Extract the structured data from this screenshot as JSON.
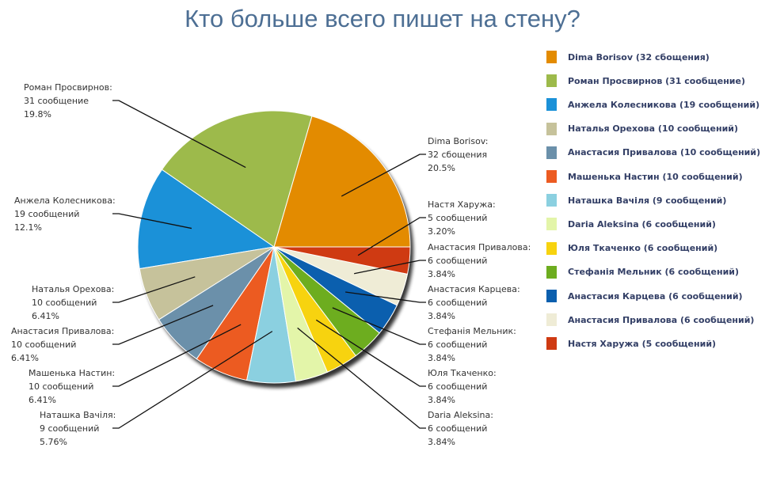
{
  "chart_data": {
    "type": "pie",
    "title": "Кто больше всего пишет на стену?",
    "slices": [
      {
        "name": "Dima Borisov",
        "value": 32,
        "percent": "20.5%",
        "count_text": "32 сбощения",
        "legend": "Dima Borisov (32 сбощения)",
        "callout_name": "Dima Borisov:",
        "color": "#e38b00"
      },
      {
        "name": "Роман Просвирнов",
        "value": 31,
        "percent": "19.8%",
        "count_text": "31 сообщение",
        "legend": "Роман Просвирнов (31 сообщение)",
        "callout_name": "Роман Просвирнов:",
        "color": "#9dba4b"
      },
      {
        "name": "Анжела Колесникова",
        "value": 19,
        "percent": "12.1%",
        "count_text": "19 сообщений",
        "legend": "Анжела Колесникова (19 сообщений)",
        "callout_name": "Анжела Колесникова:",
        "color": "#1b91d8"
      },
      {
        "name": "Наталья Орехова",
        "value": 10,
        "percent": "6.41%",
        "count_text": "10 сообщений",
        "legend": "Наталья Орехова (10 сообщений)",
        "callout_name": "Наталья Орехова:",
        "color": "#c6c29b"
      },
      {
        "name": "Анастасия Привалова",
        "value": 10,
        "percent": "6.41%",
        "count_text": "10 сообщений",
        "legend": "Анастасия Привалова (10 сообщений)",
        "callout_name": "Анастасия Привалова:",
        "color": "#6b90aa"
      },
      {
        "name": "Машенька Настин",
        "value": 10,
        "percent": "6.41%",
        "count_text": "10 сообщений",
        "legend": "Машенька Настин (10 сообщений)",
        "callout_name": "Машенька Настин:",
        "color": "#ec5b21"
      },
      {
        "name": "Наташка Вачіля",
        "value": 9,
        "percent": "5.76%",
        "count_text": "9 сообщений",
        "legend": "Наташка Вачіля (9 сообщений)",
        "callout_name": "Наташка Вачіля:",
        "color": "#8bd0e0"
      },
      {
        "name": "Daria Aleksina",
        "value": 6,
        "percent": "3.84%",
        "count_text": "6 сообщений",
        "legend": "Daria Aleksina (6 сообщений)",
        "callout_name": "Daria Aleksina:",
        "color": "#e3f5a9"
      },
      {
        "name": "Юля Ткаченко",
        "value": 6,
        "percent": "3.84%",
        "count_text": "6 сообщений",
        "legend": "Юля Ткаченко (6 сообщений)",
        "callout_name": "Юля Ткаченко:",
        "color": "#f7d30f"
      },
      {
        "name": "Стефанія Мельник",
        "value": 6,
        "percent": "3.84%",
        "count_text": "6 сообщений",
        "legend": "Стефанія Мельник (6 сообщений)",
        "callout_name": "Стефанія Мельник:",
        "color": "#6dad1f"
      },
      {
        "name": "Анастасия Карцева",
        "value": 6,
        "percent": "3.84%",
        "count_text": "6 сообщений",
        "legend": "Анастасия Карцева (6 сообщений)",
        "callout_name": "Анастасия Карцева:",
        "color": "#0b5fae"
      },
      {
        "name": "Анастасия Привалова",
        "value": 6,
        "percent": "3.84%",
        "count_text": "6 сообщений",
        "legend": "Анастасия Привалова (6 сообщений)",
        "callout_name": "Анастасия Привалова:",
        "color": "#efecd6"
      },
      {
        "name": "Настя Харужа",
        "value": 5,
        "percent": "3.20%",
        "count_text": "5 сообщений",
        "legend": "Настя Харужа (5 сообщений)",
        "callout_name": "Настя Харужа:",
        "color": "#cf3a12"
      }
    ],
    "legend_position": "right"
  }
}
